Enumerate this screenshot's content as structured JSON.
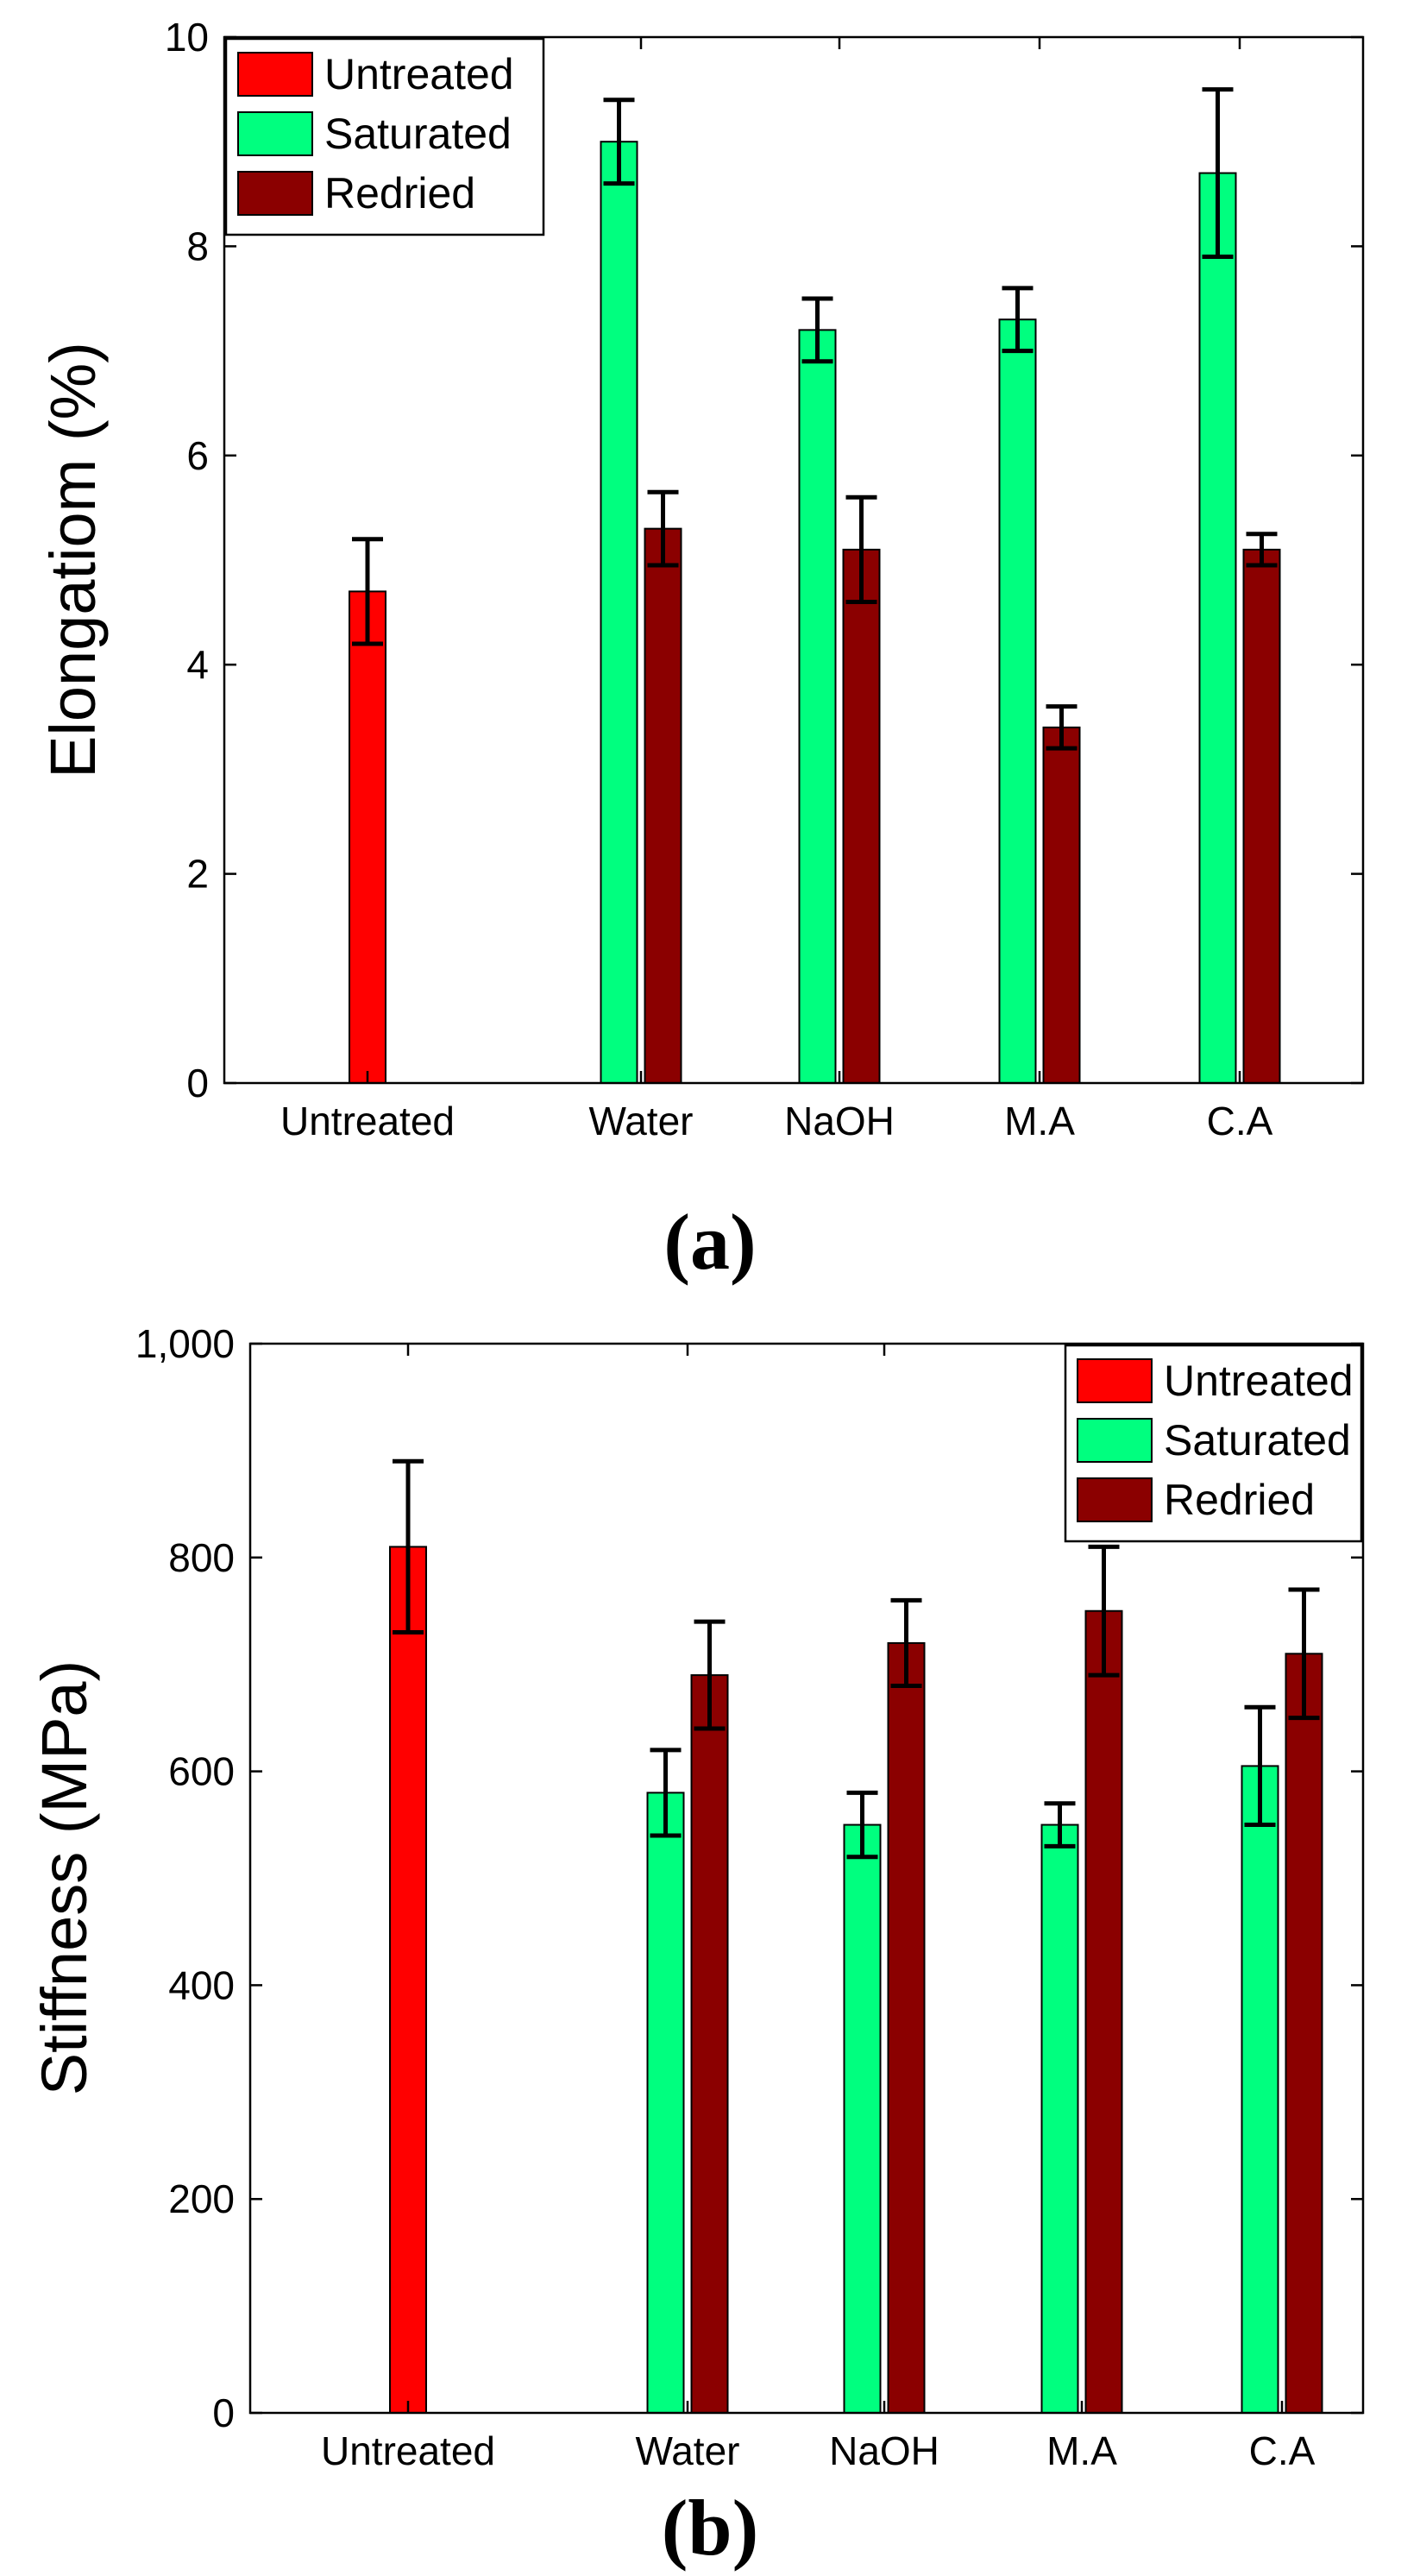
{
  "chart_data": [
    {
      "type": "bar",
      "panel_label": "(a)",
      "panel_label_parts": {
        "open": "(",
        "letter": "a",
        "close": ")"
      },
      "ylabel": "Elongatiom (%)",
      "xlabel": "",
      "ylim": [
        0,
        10
      ],
      "yticks": [
        0,
        2,
        4,
        6,
        8,
        10
      ],
      "ytick_labels": [
        "0",
        "2",
        "4",
        "6",
        "8",
        "10"
      ],
      "categories": [
        "Untreated",
        "Water",
        "NaOH",
        "M.A",
        "C.A"
      ],
      "legend_position": "top-left",
      "series": [
        {
          "name": "Untreated",
          "color": "#ff0000",
          "values": [
            4.7,
            null,
            null,
            null,
            null
          ],
          "errors": [
            0.5,
            null,
            null,
            null,
            null
          ]
        },
        {
          "name": "Saturated",
          "color": "#00ff7f",
          "values": [
            null,
            9.0,
            7.2,
            7.3,
            8.7
          ],
          "errors": [
            null,
            0.4,
            0.3,
            0.3,
            0.8
          ]
        },
        {
          "name": "Redried",
          "color": "#8b0000",
          "values": [
            null,
            5.3,
            5.1,
            3.4,
            5.1
          ],
          "errors": [
            null,
            0.35,
            0.5,
            0.2,
            0.15
          ]
        }
      ]
    },
    {
      "type": "bar",
      "panel_label": "(b)",
      "panel_label_parts": {
        "open": "(",
        "letter": "b",
        "close": ")"
      },
      "ylabel": "Stiffness (MPa)",
      "xlabel": "",
      "ylim": [
        0,
        1000
      ],
      "yticks": [
        0,
        200,
        400,
        600,
        800,
        1000
      ],
      "ytick_labels": [
        "0",
        "200",
        "400",
        "600",
        "800",
        "1,000"
      ],
      "categories": [
        "Untreated",
        "Water",
        "NaOH",
        "M.A",
        "C.A"
      ],
      "legend_position": "top-right",
      "series": [
        {
          "name": "Untreated",
          "color": "#ff0000",
          "values": [
            810,
            null,
            null,
            null,
            null
          ],
          "errors": [
            80,
            null,
            null,
            null,
            null
          ]
        },
        {
          "name": "Saturated",
          "color": "#00ff7f",
          "values": [
            null,
            580,
            550,
            550,
            605
          ],
          "errors": [
            null,
            40,
            30,
            20,
            55
          ]
        },
        {
          "name": "Redried",
          "color": "#8b0000",
          "values": [
            null,
            690,
            720,
            750,
            710
          ],
          "errors": [
            null,
            50,
            40,
            60,
            60
          ]
        }
      ]
    }
  ]
}
